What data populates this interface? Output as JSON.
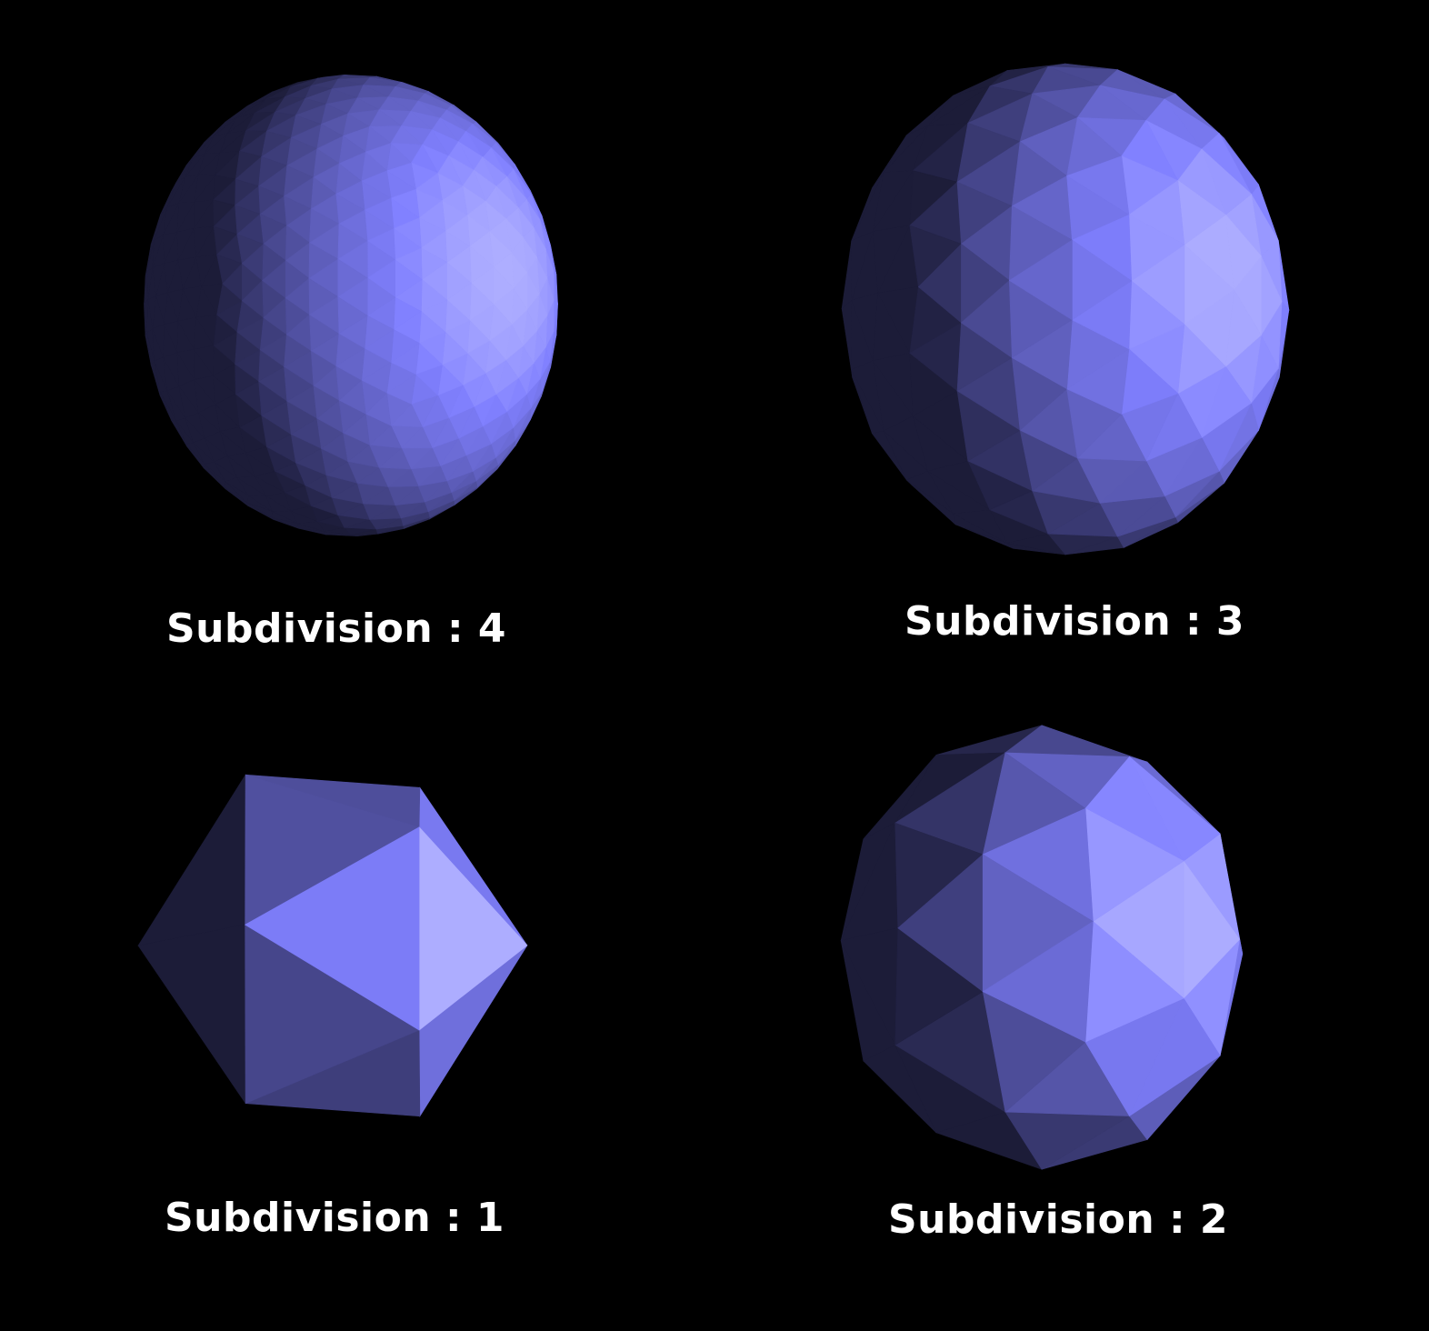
{
  "panels": [
    {
      "caption": "Subdivision : 4",
      "subdivision": 4
    },
    {
      "caption": "Subdivision : 3",
      "subdivision": 3
    },
    {
      "caption": "Subdivision : 1",
      "subdivision": 1
    },
    {
      "caption": "Subdivision : 2",
      "subdivision": 2
    }
  ],
  "colors": {
    "background": "#000000",
    "mesh_base": "#8080ff",
    "caption": "#ffffff"
  }
}
